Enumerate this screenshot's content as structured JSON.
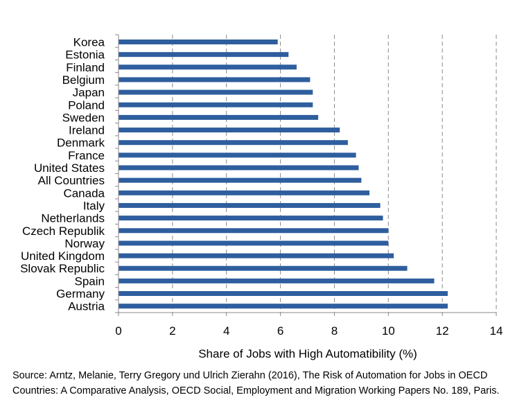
{
  "chart_data": {
    "type": "bar",
    "orientation": "horizontal",
    "categories": [
      "Korea",
      "Estonia",
      "Finland",
      "Belgium",
      "Japan",
      "Poland",
      "Sweden",
      "Ireland",
      "Denmark",
      "France",
      "United States",
      "All Countries",
      "Canada",
      "Italy",
      "Netherlands",
      "Czech Republik",
      "Norway",
      "United Kingdom",
      "Slovak Republic",
      "Spain",
      "Germany",
      "Austria"
    ],
    "values": [
      5.9,
      6.3,
      6.6,
      7.1,
      7.2,
      7.2,
      7.4,
      8.2,
      8.5,
      8.8,
      8.9,
      9.0,
      9.3,
      9.7,
      9.8,
      10.0,
      10.0,
      10.2,
      10.7,
      11.7,
      12.2,
      12.2
    ],
    "xlabel": "Share of Jobs with High Automatibility (%)",
    "xlim": [
      0,
      14
    ],
    "xticks": [
      "0",
      "2",
      "4",
      "6",
      "8",
      "10",
      "12",
      "14"
    ],
    "grid": "vertical dashed",
    "bar_color": "#2E5E9E"
  },
  "source_note": "Source: Arntz, Melanie, Terry Gregory und Ulrich Zierahn (2016), The Risk of Automation for Jobs in OECD Countries: A Comparative Analysis, OECD Social, Employment and Migration Working Papers No. 189, Paris."
}
